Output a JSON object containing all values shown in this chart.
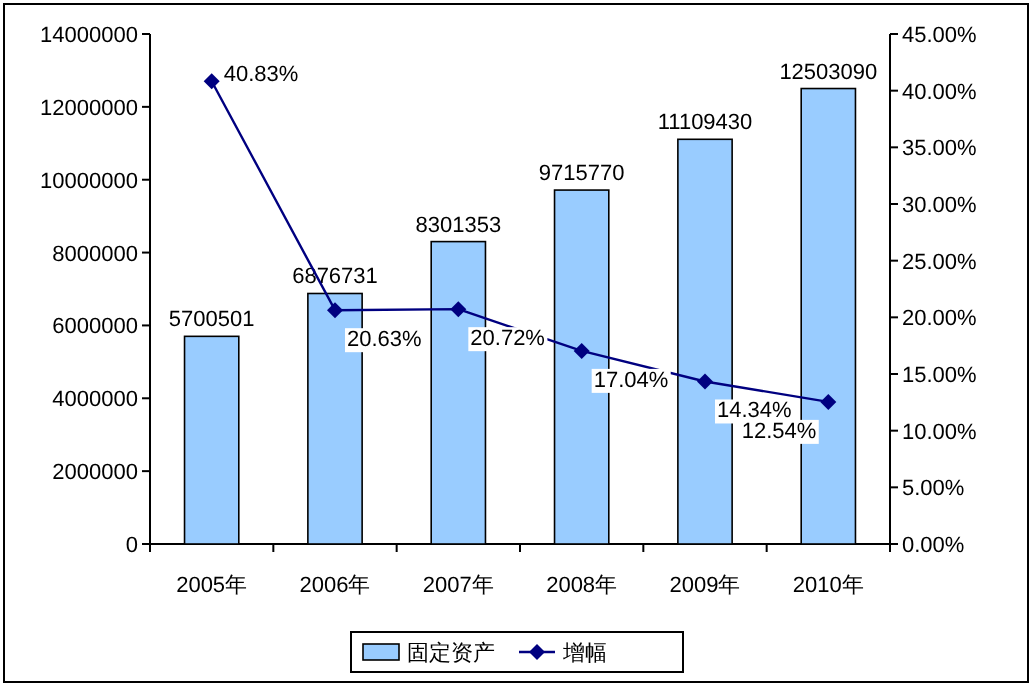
{
  "chart_data": {
    "type": "bar",
    "categories": [
      "2005年",
      "2006年",
      "2007年",
      "2008年",
      "2009年",
      "2010年"
    ],
    "series": [
      {
        "name": "固定资产",
        "color": "#99ccff",
        "values": [
          5700501,
          6876731,
          8301353,
          9715770,
          11109430,
          12503090
        ],
        "value_labels": [
          "5700501",
          "6876731",
          "8301353",
          "9715770",
          "11109430",
          "12503090"
        ]
      },
      {
        "name": "增幅",
        "type": "line",
        "axis": "y2",
        "color": "#000080",
        "values": [
          40.83,
          20.63,
          20.72,
          17.04,
          14.34,
          12.54
        ],
        "value_labels": [
          "40.83%",
          "20.63%",
          "20.72%",
          "17.04%",
          "14.34%",
          "12.54%"
        ]
      }
    ],
    "ylim": [
      0,
      14000000
    ],
    "yticks": [
      0,
      2000000,
      4000000,
      6000000,
      8000000,
      10000000,
      12000000,
      14000000
    ],
    "y2lim": [
      0,
      45
    ],
    "y2ticks": [
      {
        "value": 0,
        "label": "0.00%"
      },
      {
        "value": 5,
        "label": "5.00%"
      },
      {
        "value": 10,
        "label": "10.00%"
      },
      {
        "value": 15,
        "label": "15.00%"
      },
      {
        "value": 20,
        "label": "20.00%"
      },
      {
        "value": 25,
        "label": "25.00%"
      },
      {
        "value": 30,
        "label": "30.00%"
      },
      {
        "value": 35,
        "label": "35.00%"
      },
      {
        "value": 40,
        "label": "40.00%"
      },
      {
        "value": 45,
        "label": "45.00%"
      }
    ],
    "legend": "bottom",
    "marker": "diamond",
    "line_style": "solid"
  }
}
